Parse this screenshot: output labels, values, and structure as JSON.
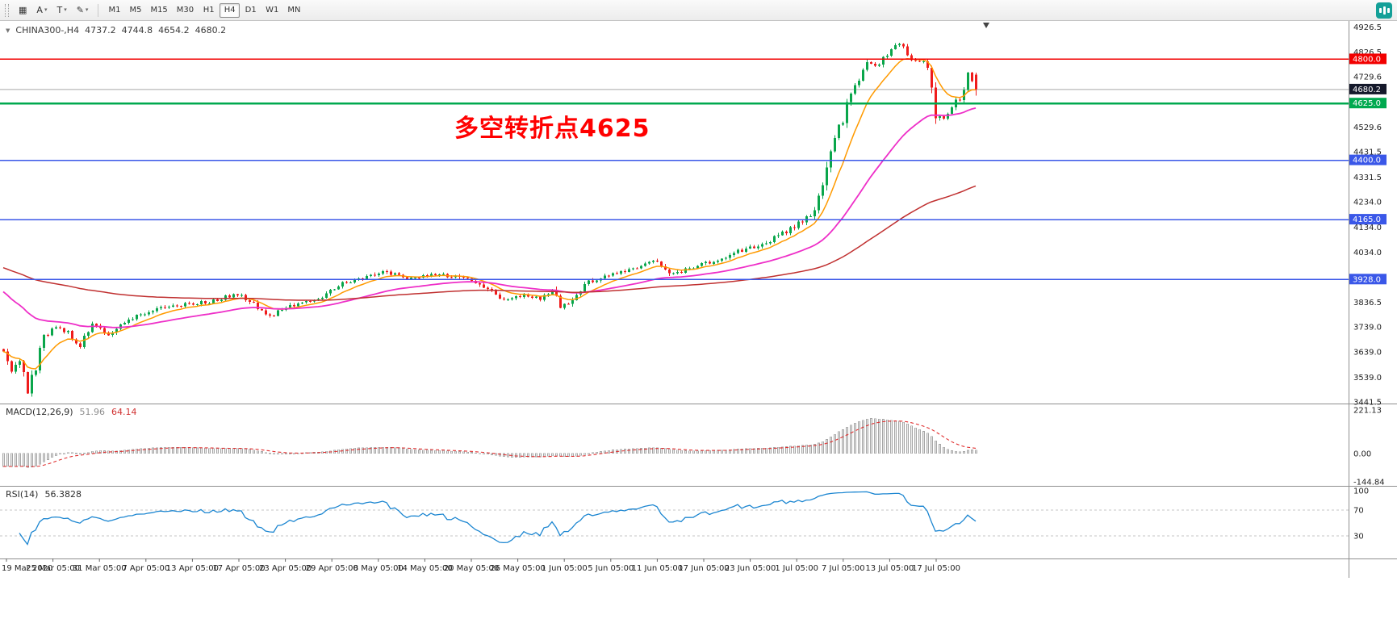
{
  "toolbar": {
    "icons_left": [
      {
        "name": "new-chart-icon",
        "glyph": "▦",
        "caret": false
      },
      {
        "name": "cursor-tool-icon",
        "glyph": "A",
        "caret": true
      },
      {
        "name": "text-tool-icon",
        "glyph": "T",
        "caret": true
      },
      {
        "name": "draw-tool-icon",
        "glyph": "✎",
        "caret": true
      }
    ],
    "timeframes": [
      "M1",
      "M5",
      "M15",
      "M30",
      "H1",
      "H4",
      "D1",
      "W1",
      "MN"
    ],
    "active_timeframe": "H4",
    "brand_color": "#14a098"
  },
  "chart": {
    "symbol_info": {
      "symbol": "CHINA300-,H4",
      "open": "4737.2",
      "high": "4744.8",
      "low": "4654.2",
      "close": "4680.2"
    },
    "annotation": {
      "text": "多空转折点4625",
      "color": "#ff0000"
    },
    "current_price": {
      "label": "4680.2",
      "value": 4680.2,
      "tag_bg": "#15192b"
    },
    "levels": [
      {
        "label": "4800.0",
        "value": 4800.0,
        "color": "#f20000",
        "width": 1.4
      },
      {
        "label": "4625.0",
        "value": 4625.0,
        "color": "#00a94f",
        "width": 2.2
      },
      {
        "label": "4400.0",
        "value": 4400.0,
        "color": "#3a57e8",
        "width": 1.6
      },
      {
        "label": "4165.0",
        "value": 4165.0,
        "color": "#3a57e8",
        "width": 1.6
      },
      {
        "label": "3928.0",
        "value": 3928.0,
        "color": "#3a57e8",
        "width": 1.6
      }
    ],
    "y_axis_labels": [
      "4926.5",
      "4826.5",
      "4729.6",
      "4529.6",
      "4431.5",
      "4331.5",
      "4234.0",
      "4134.0",
      "4034.0",
      "3836.5",
      "3739.0",
      "3639.0",
      "3539.0",
      "3441.5"
    ],
    "x_axis_labels": [
      "19 Mar 2020",
      "25 Mar 05:00",
      "31 Mar 05:00",
      "7 Apr 05:00",
      "13 Apr 05:00",
      "17 Apr 05:00",
      "23 Apr 05:00",
      "29 Apr 05:00",
      "8 May 05:00",
      "14 May 05:00",
      "20 May 05:00",
      "26 May 05:00",
      "1 Jun 05:00",
      "5 Jun 05:00",
      "11 Jun 05:00",
      "17 Jun 05:00",
      "23 Jun 05:00",
      "1 Jul 05:00",
      "7 Jul 05:00",
      "13 Jul 05:00",
      "17 Jul 05:00"
    ]
  },
  "indicators": {
    "macd": {
      "label": "MACD(12,26,9)",
      "value_main": "51.96",
      "value_signal": "64.14",
      "axis_labels": [
        "221.13",
        "0.00",
        "-144.84"
      ],
      "axis_values": [
        221.13,
        0,
        -144.84
      ]
    },
    "rsi": {
      "label": "RSI(14)",
      "value": "56.3828",
      "axis_labels": [
        "100",
        "70",
        "30"
      ],
      "axis_values": [
        100,
        70,
        30
      ],
      "levels": [
        70,
        30
      ]
    }
  },
  "chart_data": {
    "type": "candlestick",
    "symbol": "CHINA300",
    "timeframe": "H4",
    "bars": 242,
    "y_range": [
      3435,
      4950
    ],
    "last_candle": {
      "open": 4737.2,
      "high": 4744.8,
      "low": 4654.2,
      "close": 4680.2
    },
    "price_anchors": [
      [
        0,
        3640
      ],
      [
        2,
        3565
      ],
      [
        4,
        3610
      ],
      [
        6,
        3480
      ],
      [
        8,
        3575
      ],
      [
        10,
        3700
      ],
      [
        13,
        3735
      ],
      [
        16,
        3715
      ],
      [
        19,
        3665
      ],
      [
        22,
        3745
      ],
      [
        26,
        3705
      ],
      [
        30,
        3755
      ],
      [
        34,
        3788
      ],
      [
        40,
        3818
      ],
      [
        46,
        3830
      ],
      [
        52,
        3840
      ],
      [
        58,
        3870
      ],
      [
        62,
        3828
      ],
      [
        66,
        3782
      ],
      [
        72,
        3828
      ],
      [
        78,
        3850
      ],
      [
        84,
        3910
      ],
      [
        90,
        3940
      ],
      [
        94,
        3962
      ],
      [
        100,
        3930
      ],
      [
        106,
        3946
      ],
      [
        112,
        3938
      ],
      [
        118,
        3908
      ],
      [
        123,
        3845
      ],
      [
        129,
        3862
      ],
      [
        133,
        3852
      ],
      [
        136,
        3878
      ],
      [
        138,
        3818
      ],
      [
        141,
        3848
      ],
      [
        144,
        3908
      ],
      [
        150,
        3948
      ],
      [
        156,
        3968
      ],
      [
        161,
        3998
      ],
      [
        166,
        3950
      ],
      [
        172,
        3980
      ],
      [
        178,
        4008
      ],
      [
        182,
        4038
      ],
      [
        187,
        4058
      ],
      [
        192,
        4098
      ],
      [
        197,
        4150
      ],
      [
        200,
        4185
      ],
      [
        202,
        4240
      ],
      [
        205,
        4450
      ],
      [
        208,
        4565
      ],
      [
        211,
        4700
      ],
      [
        214,
        4790
      ],
      [
        217,
        4775
      ],
      [
        220,
        4840
      ],
      [
        222,
        4860
      ],
      [
        225,
        4800
      ],
      [
        228,
        4788
      ],
      [
        229,
        4772
      ],
      [
        231,
        4580
      ],
      [
        233,
        4558
      ],
      [
        235,
        4600
      ],
      [
        238,
        4678
      ],
      [
        239,
        4742
      ],
      [
        241,
        4680
      ]
    ],
    "horizontal_levels": [
      4800,
      4625,
      4400,
      4165,
      3928
    ],
    "moving_averages": [
      {
        "name": "ma-fast",
        "period": 10,
        "seed": null
      },
      {
        "name": "ma-medium",
        "period": 40,
        "seed": 3890
      },
      {
        "name": "ma-slow",
        "period": 130,
        "seed": 3978
      }
    ],
    "macd": {
      "fast": 12,
      "slow": 26,
      "signal": 9,
      "display_main": 51.96,
      "display_signal": 64.14,
      "axis": [
        221.13,
        0,
        -144.84
      ]
    },
    "rsi": {
      "period": 14,
      "display": 56.3828,
      "overbought": 70,
      "oversold": 30
    },
    "colors": {
      "up": "#0aa64b",
      "down": "#ef1c1c",
      "ma_fast": "#ff9a00",
      "ma_medium": "#ee2fc8",
      "ma_slow": "#c03030",
      "macd_hist_fill": "#ececec",
      "macd_hist_stroke": "#a6a6a6",
      "macd_signal": "#e03030",
      "rsi_line": "#1c86d1"
    }
  }
}
